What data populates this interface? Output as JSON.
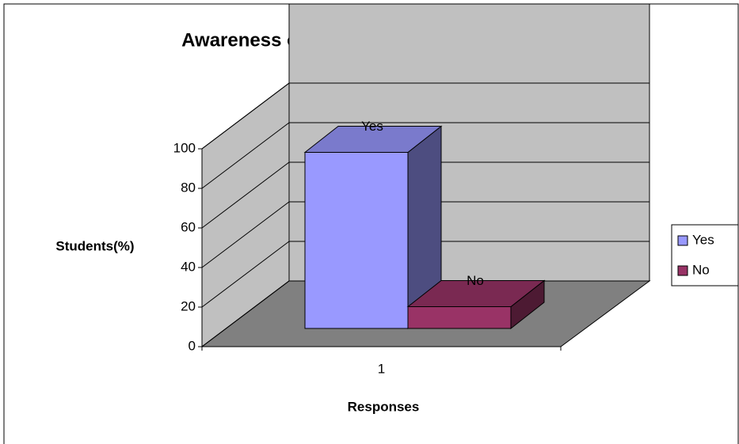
{
  "chart_data": {
    "type": "bar3d",
    "title": "Awareness of  presence of  CGCC in college",
    "x_label": "Responses",
    "y_label": "Students(%)",
    "categories": [
      "1"
    ],
    "series": [
      {
        "name": "Yes",
        "color": "#9999ff",
        "values": [
          89
        ]
      },
      {
        "name": "No",
        "color": "#993366",
        "values": [
          11
        ]
      }
    ],
    "ylim": [
      0,
      100
    ],
    "yticks": [
      0,
      20,
      40,
      60,
      80,
      100
    ],
    "grid": true,
    "legend": "right"
  }
}
